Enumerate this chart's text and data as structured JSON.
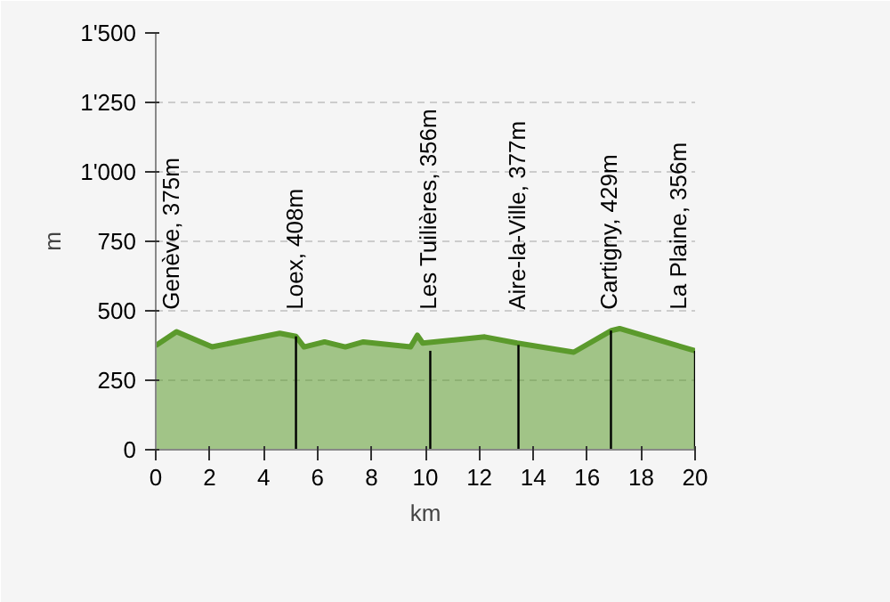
{
  "chart_data": {
    "type": "area",
    "xlabel": "km",
    "ylabel": "m",
    "x": [
      0,
      0.77,
      2.09,
      4.6,
      5.2,
      5.5,
      6.26,
      7.03,
      7.7,
      9.45,
      9.7,
      9.9,
      12.2,
      13.4,
      15.5,
      16.9,
      17.2,
      20
    ],
    "series": [
      {
        "color": "#5b9a2c",
        "values": [
          375,
          425,
          370,
          419,
          408,
          370,
          388,
          370,
          388,
          370,
          412,
          384,
          406,
          384,
          351,
          429,
          436,
          356
        ]
      },
      {
        "type": "bar",
        "color": "#000000",
        "x": [
          5.2,
          10.18,
          13.45,
          16.88,
          20
        ],
        "values": [
          408,
          356,
          377,
          429,
          356
        ]
      }
    ],
    "annotations": [
      {
        "text": "Genève, 375m",
        "x": 0,
        "y": 375
      },
      {
        "text": "Loex, 408m",
        "x": 5.2,
        "y": 408
      },
      {
        "text": "Les Tuilières, 356m",
        "x": 10.18,
        "y": 356
      },
      {
        "text": "Aire-la-Ville, 377m",
        "x": 13.45,
        "y": 377
      },
      {
        "text": "Cartigny, 429m",
        "x": 16.88,
        "y": 429
      },
      {
        "text": "La Plaine, 356m",
        "x": 20,
        "y": 356
      }
    ],
    "xlim": [
      0,
      20
    ],
    "xticks": [
      0,
      2,
      4,
      6,
      8,
      10,
      12,
      14,
      16,
      18,
      20
    ],
    "ylim": [
      0,
      1500
    ],
    "yticks": [
      0,
      250,
      500,
      750,
      {
        "value": 1000,
        "label": "1'000"
      },
      {
        "value": 1250,
        "label": "1'250"
      },
      {
        "value": 1500,
        "label": "1'500"
      }
    ],
    "grid": "y",
    "marker": "none"
  }
}
